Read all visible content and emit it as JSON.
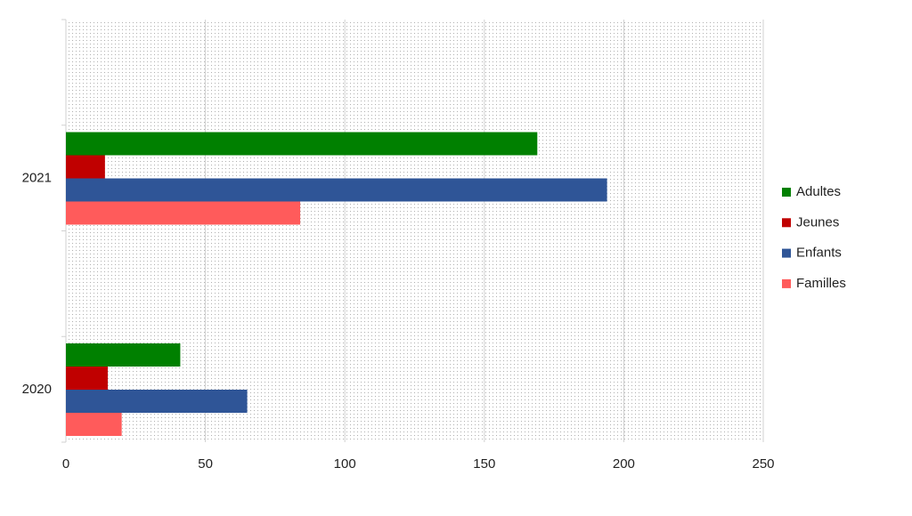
{
  "chart_data": {
    "type": "hbar",
    "categories": [
      "2020",
      "2021"
    ],
    "series": [
      {
        "name": "Adultes",
        "color": "#008000",
        "values": [
          41,
          169
        ]
      },
      {
        "name": "Jeunes",
        "color": "#c00000",
        "values": [
          15,
          14
        ]
      },
      {
        "name": "Enfants",
        "color": "#2f5597",
        "values": [
          65,
          194
        ]
      },
      {
        "name": "Familles",
        "color": "#ff5b5b",
        "values": [
          20,
          84
        ]
      }
    ],
    "xlim": [
      0,
      250
    ],
    "xticks": [
      0,
      50,
      100,
      150,
      200,
      250
    ],
    "grid": true,
    "legend": "right"
  }
}
